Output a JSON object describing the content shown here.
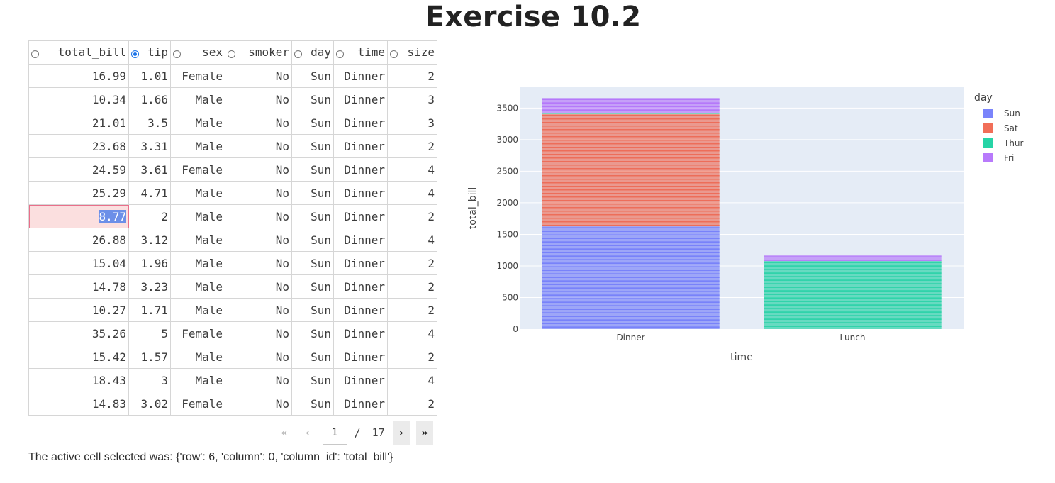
{
  "page": {
    "title": "Exercise 10.2"
  },
  "table": {
    "columns": [
      {
        "label": "total_bill",
        "selected": false
      },
      {
        "label": "tip",
        "selected": true
      },
      {
        "label": "sex",
        "selected": false
      },
      {
        "label": "smoker",
        "selected": false
      },
      {
        "label": "day",
        "selected": false
      },
      {
        "label": "time",
        "selected": false
      },
      {
        "label": "size",
        "selected": false
      }
    ],
    "rows": [
      [
        "16.99",
        "1.01",
        "Female",
        "No",
        "Sun",
        "Dinner",
        "2"
      ],
      [
        "10.34",
        "1.66",
        "Male",
        "No",
        "Sun",
        "Dinner",
        "3"
      ],
      [
        "21.01",
        "3.5",
        "Male",
        "No",
        "Sun",
        "Dinner",
        "3"
      ],
      [
        "23.68",
        "3.31",
        "Male",
        "No",
        "Sun",
        "Dinner",
        "2"
      ],
      [
        "24.59",
        "3.61",
        "Female",
        "No",
        "Sun",
        "Dinner",
        "4"
      ],
      [
        "25.29",
        "4.71",
        "Male",
        "No",
        "Sun",
        "Dinner",
        "4"
      ],
      [
        "8.77",
        "2",
        "Male",
        "No",
        "Sun",
        "Dinner",
        "2"
      ],
      [
        "26.88",
        "3.12",
        "Male",
        "No",
        "Sun",
        "Dinner",
        "4"
      ],
      [
        "15.04",
        "1.96",
        "Male",
        "No",
        "Sun",
        "Dinner",
        "2"
      ],
      [
        "14.78",
        "3.23",
        "Male",
        "No",
        "Sun",
        "Dinner",
        "2"
      ],
      [
        "10.27",
        "1.71",
        "Male",
        "No",
        "Sun",
        "Dinner",
        "2"
      ],
      [
        "35.26",
        "5",
        "Female",
        "No",
        "Sun",
        "Dinner",
        "4"
      ],
      [
        "15.42",
        "1.57",
        "Male",
        "No",
        "Sun",
        "Dinner",
        "2"
      ],
      [
        "18.43",
        "3",
        "Male",
        "No",
        "Sun",
        "Dinner",
        "4"
      ],
      [
        "14.83",
        "3.02",
        "Female",
        "No",
        "Sun",
        "Dinner",
        "2"
      ]
    ],
    "active_cell": {
      "row": 6,
      "column": 0
    }
  },
  "pagination": {
    "current_page": "1",
    "separator": "/",
    "total_pages": "17",
    "first_icon": "double-chevron-left-icon",
    "prev_icon": "chevron-left-icon",
    "next_icon": "chevron-right-icon",
    "last_icon": "double-chevron-right-icon"
  },
  "status_text": "The active cell selected was: {'row': 6, 'column': 0, 'column_id': 'total_bill'}",
  "chart_data": {
    "type": "bar",
    "categories": [
      "Dinner",
      "Lunch"
    ],
    "series": [
      {
        "name": "Sun",
        "color": "#636efa",
        "values": [
          1627.16,
          0
        ]
      },
      {
        "name": "Sat",
        "color": "#ef553b",
        "values": [
          1778.4,
          0
        ]
      },
      {
        "name": "Thur",
        "color": "#00cc96",
        "values": [
          18.78,
          1077.55
        ]
      },
      {
        "name": "Fri",
        "color": "#ab63fa",
        "values": [
          235.96,
          89.92
        ]
      }
    ],
    "xlabel": "time",
    "ylabel": "total_bill",
    "legend_title": "day",
    "yticks": [
      0,
      500,
      1000,
      1500,
      2000,
      2500,
      3000,
      3500
    ],
    "ylim": [
      0,
      3830
    ],
    "barmode": "stack",
    "grid": true,
    "legend_position": "right",
    "plot_bg": "#e5ecf6"
  }
}
